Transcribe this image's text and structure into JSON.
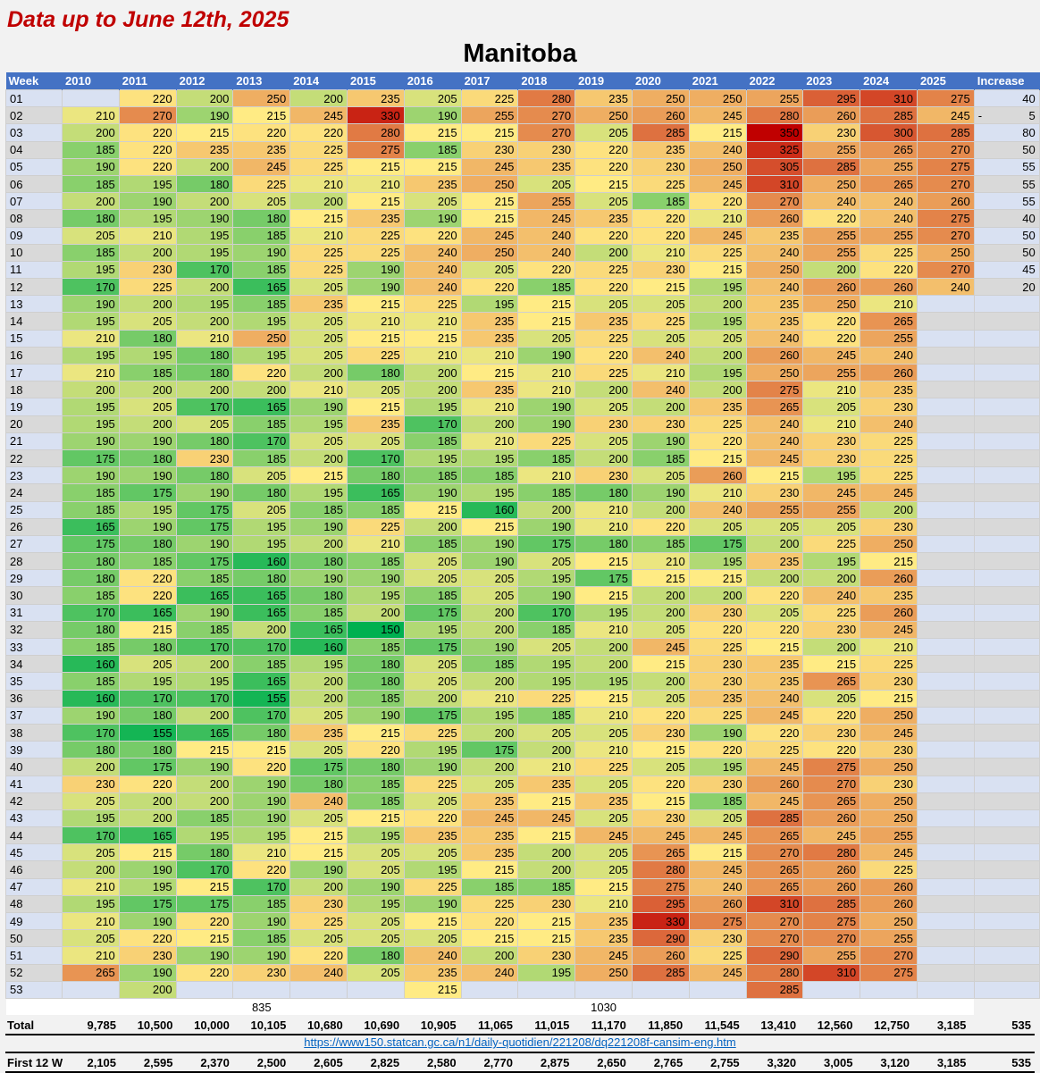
{
  "header": {
    "subtitle": "Data up to June 12th, 2025",
    "title": "Manitoba"
  },
  "table": {
    "columns": [
      "Week",
      "2010",
      "2011",
      "2012",
      "2013",
      "2014",
      "2015",
      "2016",
      "2017",
      "2018",
      "2019",
      "2020",
      "2021",
      "2022",
      "2023",
      "2024",
      "2025",
      "Increase"
    ],
    "rows": [
      {
        "week": "01",
        "values": [
          null,
          220,
          200,
          250,
          200,
          235,
          205,
          225,
          280,
          235,
          250,
          250,
          255,
          295,
          310,
          275
        ],
        "increase": "40"
      },
      {
        "week": "02",
        "values": [
          210,
          270,
          190,
          215,
          245,
          330,
          190,
          255,
          270,
          250,
          260,
          245,
          280,
          260,
          285,
          245
        ],
        "increase": "5",
        "increase_sign": "-"
      },
      {
        "week": "03",
        "values": [
          200,
          220,
          215,
          220,
          220,
          280,
          215,
          215,
          270,
          205,
          285,
          215,
          350,
          230,
          300,
          285
        ],
        "increase": "80"
      },
      {
        "week": "04",
        "values": [
          185,
          220,
          235,
          235,
          225,
          275,
          185,
          230,
          230,
          220,
          235,
          240,
          325,
          255,
          265,
          270
        ],
        "increase": "50"
      },
      {
        "week": "05",
        "values": [
          190,
          220,
          200,
          245,
          225,
          215,
          215,
          245,
          235,
          220,
          230,
          250,
          305,
          285,
          255,
          275
        ],
        "increase": "55"
      },
      {
        "week": "06",
        "values": [
          185,
          195,
          180,
          225,
          210,
          210,
          235,
          250,
          205,
          215,
          225,
          245,
          310,
          250,
          265,
          270
        ],
        "increase": "55"
      },
      {
        "week": "07",
        "values": [
          200,
          190,
          200,
          205,
          200,
          215,
          205,
          215,
          255,
          205,
          185,
          220,
          270,
          240,
          240,
          260
        ],
        "increase": "55"
      },
      {
        "week": "08",
        "values": [
          180,
          195,
          190,
          180,
          215,
          235,
          190,
          215,
          245,
          235,
          220,
          210,
          260,
          220,
          240,
          275
        ],
        "increase": "40"
      },
      {
        "week": "09",
        "values": [
          205,
          210,
          195,
          185,
          210,
          225,
          220,
          245,
          240,
          220,
          220,
          245,
          235,
          255,
          255,
          270
        ],
        "increase": "50"
      },
      {
        "week": "10",
        "values": [
          185,
          200,
          195,
          190,
          225,
          225,
          240,
          250,
          240,
          200,
          210,
          225,
          240,
          255,
          225,
          250
        ],
        "increase": "50"
      },
      {
        "week": "11",
        "values": [
          195,
          230,
          170,
          185,
          225,
          190,
          240,
          205,
          220,
          225,
          230,
          215,
          250,
          200,
          220,
          270
        ],
        "increase": "45"
      },
      {
        "week": "12",
        "values": [
          170,
          225,
          200,
          165,
          205,
          190,
          240,
          220,
          185,
          220,
          215,
          195,
          240,
          260,
          260,
          240
        ],
        "increase": "20"
      },
      {
        "week": "13",
        "values": [
          190,
          200,
          195,
          185,
          235,
          215,
          225,
          195,
          215,
          205,
          205,
          200,
          235,
          250,
          210,
          null
        ],
        "increase": ""
      },
      {
        "week": "14",
        "values": [
          195,
          205,
          200,
          195,
          205,
          210,
          210,
          235,
          215,
          235,
          225,
          195,
          235,
          220,
          265,
          null
        ],
        "increase": ""
      },
      {
        "week": "15",
        "values": [
          210,
          180,
          210,
          250,
          205,
          215,
          215,
          235,
          205,
          225,
          205,
          205,
          240,
          220,
          255,
          null
        ],
        "increase": ""
      },
      {
        "week": "16",
        "values": [
          195,
          195,
          180,
          195,
          205,
          225,
          210,
          210,
          190,
          220,
          240,
          200,
          260,
          245,
          240,
          null
        ],
        "increase": ""
      },
      {
        "week": "17",
        "values": [
          210,
          185,
          180,
          220,
          200,
          180,
          200,
          215,
          210,
          225,
          210,
          195,
          250,
          255,
          260,
          null
        ],
        "increase": ""
      },
      {
        "week": "18",
        "values": [
          200,
          200,
          200,
          200,
          210,
          205,
          200,
          235,
          210,
          200,
          240,
          200,
          275,
          210,
          235,
          null
        ],
        "increase": ""
      },
      {
        "week": "19",
        "values": [
          195,
          205,
          170,
          165,
          190,
          215,
          195,
          210,
          190,
          205,
          200,
          235,
          265,
          205,
          230,
          null
        ],
        "increase": ""
      },
      {
        "week": "20",
        "values": [
          195,
          200,
          205,
          185,
          195,
          235,
          170,
          200,
          190,
          230,
          230,
          225,
          240,
          210,
          240,
          null
        ],
        "increase": ""
      },
      {
        "week": "21",
        "values": [
          190,
          190,
          180,
          170,
          205,
          205,
          185,
          210,
          225,
          205,
          190,
          220,
          240,
          230,
          225,
          null
        ],
        "increase": ""
      },
      {
        "week": "22",
        "values": [
          175,
          180,
          230,
          185,
          200,
          170,
          195,
          195,
          185,
          200,
          185,
          215,
          245,
          230,
          225,
          null
        ],
        "increase": ""
      },
      {
        "week": "23",
        "values": [
          190,
          190,
          180,
          205,
          215,
          180,
          185,
          185,
          210,
          230,
          205,
          260,
          215,
          195,
          225,
          null
        ],
        "increase": ""
      },
      {
        "week": "24",
        "values": [
          185,
          175,
          190,
          180,
          195,
          165,
          190,
          195,
          185,
          180,
          190,
          210,
          230,
          245,
          245,
          null
        ],
        "increase": ""
      },
      {
        "week": "25",
        "values": [
          185,
          195,
          175,
          205,
          185,
          185,
          215,
          160,
          200,
          210,
          200,
          240,
          255,
          255,
          200,
          null
        ],
        "increase": ""
      },
      {
        "week": "26",
        "values": [
          165,
          190,
          175,
          195,
          190,
          225,
          200,
          215,
          190,
          210,
          220,
          205,
          205,
          205,
          230,
          null
        ],
        "increase": ""
      },
      {
        "week": "27",
        "values": [
          175,
          180,
          190,
          195,
          200,
          210,
          185,
          190,
          175,
          180,
          185,
          175,
          200,
          225,
          250,
          null
        ],
        "increase": ""
      },
      {
        "week": "28",
        "values": [
          180,
          185,
          175,
          160,
          180,
          185,
          205,
          190,
          205,
          215,
          210,
          195,
          235,
          195,
          215,
          null
        ],
        "increase": ""
      },
      {
        "week": "29",
        "values": [
          180,
          220,
          185,
          180,
          190,
          190,
          205,
          205,
          195,
          175,
          215,
          215,
          200,
          200,
          260,
          null
        ],
        "increase": ""
      },
      {
        "week": "30",
        "values": [
          185,
          220,
          165,
          165,
          180,
          195,
          185,
          205,
          190,
          215,
          200,
          200,
          220,
          240,
          235,
          null
        ],
        "increase": ""
      },
      {
        "week": "31",
        "values": [
          170,
          165,
          190,
          165,
          185,
          200,
          175,
          200,
          170,
          195,
          200,
          230,
          205,
          225,
          260,
          null
        ],
        "increase": ""
      },
      {
        "week": "32",
        "values": [
          180,
          215,
          185,
          200,
          165,
          150,
          195,
          200,
          185,
          210,
          205,
          220,
          220,
          230,
          245,
          null
        ],
        "increase": ""
      },
      {
        "week": "33",
        "values": [
          185,
          180,
          170,
          170,
          160,
          185,
          175,
          190,
          205,
          200,
          245,
          225,
          215,
          200,
          210,
          null
        ],
        "increase": ""
      },
      {
        "week": "34",
        "values": [
          160,
          205,
          200,
          185,
          195,
          180,
          205,
          185,
          195,
          200,
          215,
          230,
          235,
          215,
          225,
          null
        ],
        "increase": ""
      },
      {
        "week": "35",
        "values": [
          185,
          195,
          195,
          165,
          200,
          180,
          205,
          200,
          195,
          195,
          200,
          230,
          235,
          265,
          230,
          null
        ],
        "increase": ""
      },
      {
        "week": "36",
        "values": [
          160,
          170,
          170,
          155,
          200,
          185,
          200,
          210,
          225,
          215,
          205,
          235,
          240,
          205,
          215,
          null
        ],
        "increase": ""
      },
      {
        "week": "37",
        "values": [
          190,
          180,
          200,
          170,
          205,
          190,
          175,
          195,
          185,
          210,
          220,
          225,
          245,
          220,
          250,
          null
        ],
        "increase": ""
      },
      {
        "week": "38",
        "values": [
          170,
          155,
          165,
          180,
          235,
          215,
          225,
          200,
          205,
          205,
          230,
          190,
          220,
          230,
          245,
          null
        ],
        "increase": ""
      },
      {
        "week": "39",
        "values": [
          180,
          180,
          215,
          215,
          205,
          220,
          195,
          175,
          200,
          210,
          215,
          220,
          225,
          220,
          230,
          null
        ],
        "increase": ""
      },
      {
        "week": "40",
        "values": [
          200,
          175,
          190,
          220,
          175,
          180,
          190,
          200,
          210,
          225,
          205,
          195,
          245,
          275,
          250,
          null
        ],
        "increase": ""
      },
      {
        "week": "41",
        "values": [
          230,
          220,
          200,
          190,
          180,
          185,
          225,
          205,
          235,
          205,
          220,
          230,
          260,
          270,
          230,
          null
        ],
        "increase": ""
      },
      {
        "week": "42",
        "values": [
          205,
          200,
          200,
          190,
          240,
          185,
          205,
          235,
          215,
          235,
          215,
          185,
          245,
          265,
          250,
          null
        ],
        "increase": ""
      },
      {
        "week": "43",
        "values": [
          195,
          200,
          185,
          190,
          205,
          215,
          220,
          245,
          245,
          205,
          230,
          205,
          285,
          260,
          250,
          null
        ],
        "increase": ""
      },
      {
        "week": "44",
        "values": [
          170,
          165,
          195,
          195,
          215,
          195,
          235,
          235,
          215,
          245,
          245,
          245,
          265,
          245,
          255,
          null
        ],
        "increase": ""
      },
      {
        "week": "45",
        "values": [
          205,
          215,
          180,
          210,
          215,
          205,
          205,
          235,
          200,
          205,
          265,
          215,
          270,
          280,
          245,
          null
        ],
        "increase": ""
      },
      {
        "week": "46",
        "values": [
          200,
          190,
          170,
          220,
          190,
          205,
          195,
          215,
          200,
          205,
          280,
          245,
          265,
          260,
          225,
          null
        ],
        "increase": ""
      },
      {
        "week": "47",
        "values": [
          210,
          195,
          215,
          170,
          200,
          190,
          225,
          185,
          185,
          215,
          275,
          240,
          265,
          260,
          260,
          null
        ],
        "increase": ""
      },
      {
        "week": "48",
        "values": [
          195,
          175,
          175,
          185,
          230,
          195,
          190,
          225,
          230,
          210,
          295,
          260,
          310,
          285,
          260,
          null
        ],
        "increase": ""
      },
      {
        "week": "49",
        "values": [
          210,
          190,
          220,
          190,
          225,
          205,
          215,
          220,
          215,
          235,
          330,
          275,
          270,
          275,
          250,
          null
        ],
        "increase": ""
      },
      {
        "week": "50",
        "values": [
          205,
          220,
          215,
          185,
          205,
          205,
          205,
          215,
          215,
          235,
          290,
          230,
          270,
          270,
          255,
          null
        ],
        "increase": ""
      },
      {
        "week": "51",
        "values": [
          210,
          230,
          190,
          190,
          220,
          180,
          240,
          200,
          230,
          245,
          260,
          225,
          290,
          255,
          270,
          null
        ],
        "increase": ""
      },
      {
        "week": "52",
        "values": [
          265,
          190,
          220,
          230,
          240,
          205,
          235,
          240,
          195,
          250,
          285,
          245,
          280,
          310,
          275,
          null
        ],
        "increase": ""
      },
      {
        "week": "53",
        "values": [
          null,
          200,
          null,
          null,
          null,
          null,
          215,
          null,
          null,
          null,
          null,
          null,
          285,
          null,
          null,
          null
        ],
        "increase": ""
      }
    ],
    "extra_row": [
      "",
      "",
      "",
      "",
      "835",
      "",
      "",
      "",
      "",
      "",
      "1030",
      "",
      "",
      "",
      "",
      "",
      ""
    ],
    "color_scale": {
      "min_color": "#00b050",
      "mid_color": "#ffeb84",
      "max_color": "#c00000",
      "min": 150,
      "mid": 215,
      "max": 350
    }
  },
  "footer": {
    "total_label": "Total",
    "totals": [
      "9,785",
      "10,500",
      "10,000",
      "10,105",
      "10,680",
      "10,690",
      "10,905",
      "11,065",
      "11,015",
      "11,170",
      "11,850",
      "11,545",
      "13,410",
      "12,560",
      "12,750",
      "3,185"
    ],
    "total_increase": "535",
    "link": "https://www150.statcan.gc.ca/n1/daily-quotidien/221208/dq221208f-cansim-eng.htm",
    "first12_label": "First 12 W",
    "first12": [
      "2,105",
      "2,595",
      "2,370",
      "2,500",
      "2,605",
      "2,825",
      "2,580",
      "2,770",
      "2,875",
      "2,650",
      "2,765",
      "2,755",
      "3,320",
      "3,005",
      "3,120",
      "3,185"
    ],
    "first12_increase": "535"
  }
}
